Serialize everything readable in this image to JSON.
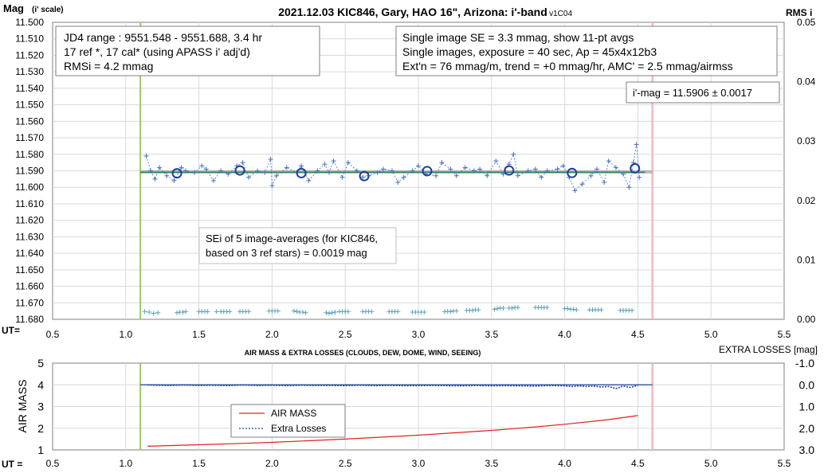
{
  "chart_data": [
    {
      "type": "scatter",
      "title": "2021.12.03 KIC846, Gary, HAO 16\", Arizona: i'-band",
      "version": "- v1C04",
      "ylabel_left_main": "Mag",
      "ylabel_left_sub": "(i' scale)",
      "ylabel_right": "RMS i",
      "xlabel": "UT=",
      "xlim": [
        0.5,
        5.5
      ],
      "ylim_left": [
        11.68,
        11.5
      ],
      "ylim_right": [
        0.0,
        0.05
      ],
      "x_ticks": [
        "0.5",
        "1.0",
        "1.5",
        "2.0",
        "2.5",
        "3.0",
        "3.5",
        "4.0",
        "4.5",
        "5.0",
        "5.5"
      ],
      "y_ticks_left": [
        "11.500",
        "11.510",
        "11.520",
        "11.530",
        "11.540",
        "11.550",
        "11.560",
        "11.570",
        "11.580",
        "11.590",
        "11.600",
        "11.610",
        "11.620",
        "11.630",
        "11.640",
        "11.650",
        "11.660",
        "11.670",
        "11.680"
      ],
      "y_ticks_right": [
        "0.05",
        "0.04",
        "0.03",
        "0.02",
        "0.01",
        "0.00"
      ],
      "grid": true,
      "start_line_ut": 1.1,
      "end_line_ut": 4.6,
      "mean_mag": 11.5906,
      "mean_line": {
        "x1": 1.1,
        "x2": 4.6,
        "y": 11.5906,
        "color": "#aaaaaa"
      },
      "fit_line": {
        "x1": 1.1,
        "x2": 4.55,
        "y": 11.5909,
        "color": "#2e8b57"
      },
      "info_box_left": [
        "JD4 range : 9551.548 - 9551.688, 3.4  hr",
        "17 ref *, 17 cal* (using APASS i' adj'd)",
        "RMSi = 4.2 mmag"
      ],
      "info_box_right": [
        "Single image SE = 3.3 mmag, show 11-pt avgs",
        "Single images, exposure = 40 sec, Ap = 45x4x12b3",
        "Ext'n = 76 mmag/m, trend = +0 mmag/hr, AMC' = 2.5 mmag/airmss"
      ],
      "result_label": "i'-mag = 11.5906 ± 0.0017",
      "sei_label": [
        "SEi of 5 image-averages (for KIC846,",
        "based on 3 ref stars) = 0.0019 mag"
      ],
      "series": [
        {
          "kind": "single_images",
          "color": "#4472c4",
          "x": [
            1.14,
            1.17,
            1.2,
            1.23,
            1.28,
            1.33,
            1.38,
            1.41,
            1.47,
            1.52,
            1.55,
            1.6,
            1.65,
            1.7,
            1.76,
            1.8,
            1.84,
            1.9,
            1.95,
            1.99,
            2.0,
            2.03,
            2.1,
            2.17,
            2.2,
            2.25,
            2.31,
            2.36,
            2.39,
            2.42,
            2.48,
            2.52,
            2.58,
            2.62,
            2.66,
            2.72,
            2.76,
            2.82,
            2.86,
            2.9,
            2.96,
            3.0,
            3.05,
            3.12,
            3.16,
            3.22,
            3.26,
            3.32,
            3.38,
            3.42,
            3.47,
            3.53,
            3.58,
            3.62,
            3.65,
            3.68,
            3.75,
            3.8,
            3.84,
            3.88,
            3.95,
            3.99,
            4.03,
            4.07,
            4.12,
            4.18,
            4.22,
            4.27,
            4.3,
            4.35,
            4.4,
            4.44,
            4.47,
            4.49,
            4.51
          ],
          "y": [
            11.581,
            11.59,
            11.595,
            11.588,
            11.593,
            11.596,
            11.588,
            11.59,
            11.591,
            11.587,
            11.589,
            11.596,
            11.59,
            11.592,
            11.587,
            11.585,
            11.594,
            11.59,
            11.591,
            11.583,
            11.599,
            11.593,
            11.588,
            11.591,
            11.587,
            11.596,
            11.59,
            11.586,
            11.591,
            11.584,
            11.594,
            11.585,
            11.59,
            11.594,
            11.593,
            11.591,
            11.589,
            11.59,
            11.597,
            11.594,
            11.59,
            11.587,
            11.592,
            11.593,
            11.585,
            11.589,
            11.593,
            11.588,
            11.59,
            11.589,
            11.593,
            11.584,
            11.592,
            11.586,
            11.58,
            11.593,
            11.59,
            11.589,
            11.594,
            11.59,
            11.589,
            11.587,
            11.594,
            11.602,
            11.598,
            11.593,
            11.589,
            11.597,
            11.584,
            11.588,
            11.592,
            11.6,
            11.585,
            11.574,
            11.594
          ]
        },
        {
          "kind": "11_pt_averages",
          "color": "#1f3fa0",
          "x": [
            1.35,
            1.78,
            2.2,
            2.63,
            3.06,
            3.62,
            4.05,
            4.48
          ],
          "y": [
            11.5915,
            11.5898,
            11.5914,
            11.5932,
            11.5902,
            11.5898,
            11.5913,
            11.5885
          ]
        },
        {
          "kind": "rms_per_image",
          "axis": "right",
          "color": "#5ba3b5",
          "x": [
            1.13,
            1.16,
            1.19,
            1.22,
            1.35,
            1.37,
            1.39,
            1.41,
            1.5,
            1.52,
            1.54,
            1.56,
            1.62,
            1.65,
            1.67,
            1.69,
            1.71,
            1.78,
            1.8,
            1.82,
            1.84,
            1.98,
            2.0,
            2.02,
            2.04,
            2.15,
            2.17,
            2.19,
            2.21,
            2.23,
            2.37,
            2.39,
            2.41,
            2.43,
            2.46,
            2.48,
            2.5,
            2.52,
            2.62,
            2.64,
            2.66,
            2.68,
            2.8,
            2.82,
            2.84,
            2.86,
            2.96,
            2.98,
            3.0,
            3.02,
            3.04,
            3.18,
            3.2,
            3.22,
            3.24,
            3.26,
            3.33,
            3.35,
            3.37,
            3.39,
            3.41,
            3.52,
            3.54,
            3.56,
            3.58,
            3.62,
            3.64,
            3.66,
            3.68,
            3.8,
            3.82,
            3.84,
            3.86,
            3.88,
            4.0,
            4.02,
            4.04,
            4.06,
            4.08,
            4.17,
            4.19,
            4.21,
            4.23,
            4.25,
            4.38,
            4.4,
            4.42,
            4.44,
            4.46
          ],
          "y": [
            0.0013,
            0.0012,
            0.001,
            0.0011,
            0.0011,
            0.0012,
            0.0012,
            0.0013,
            0.0013,
            0.0013,
            0.0013,
            0.0013,
            0.0013,
            0.0013,
            0.0013,
            0.0013,
            0.0013,
            0.0013,
            0.0013,
            0.0013,
            0.0013,
            0.0014,
            0.0014,
            0.0014,
            0.0014,
            0.0014,
            0.0013,
            0.0012,
            0.0012,
            0.0011,
            0.0011,
            0.001,
            0.0011,
            0.0012,
            0.0013,
            0.0013,
            0.0013,
            0.0013,
            0.0013,
            0.0013,
            0.0013,
            0.0013,
            0.0013,
            0.0013,
            0.0013,
            0.0013,
            0.0012,
            0.0012,
            0.0012,
            0.0012,
            0.0012,
            0.0013,
            0.0013,
            0.0013,
            0.0014,
            0.0014,
            0.0015,
            0.0015,
            0.0015,
            0.0016,
            0.0016,
            0.0017,
            0.0018,
            0.0019,
            0.0019,
            0.0019,
            0.0019,
            0.002,
            0.002,
            0.002,
            0.002,
            0.002,
            0.002,
            0.002,
            0.0018,
            0.0018,
            0.0017,
            0.0017,
            0.0016,
            0.0016,
            0.0016,
            0.0016,
            0.0016,
            0.0016,
            0.0015,
            0.0015,
            0.0015,
            0.0015,
            0.0015
          ]
        }
      ]
    },
    {
      "type": "line",
      "title": "AIR MASS & EXTRA LOSSES (CLOUDS, DEW, DOME, WIND, SEEING)",
      "ylabel_left": "AIR MASS",
      "ylabel_right": "EXTRA LOSSES [mag]",
      "xlabel": "UT =",
      "xlim": [
        0.5,
        5.5
      ],
      "ylim_left": [
        1,
        5
      ],
      "ylim_right": [
        3.0,
        -1.0
      ],
      "x_ticks": [
        "0.5",
        "1.0",
        "1.5",
        "2.0",
        "2.5",
        "3.0",
        "3.5",
        "4.0",
        "4.5",
        "5.0",
        "5.5"
      ],
      "y_ticks_left": [
        "5",
        "4",
        "3",
        "2",
        "1"
      ],
      "y_ticks_right": [
        "-1.0",
        "0.0",
        "1.0",
        "2.0",
        "3.0"
      ],
      "grid": true,
      "start_line_ut": 1.1,
      "end_line_ut": 4.6,
      "zero_line": {
        "x1": 1.1,
        "x2": 4.6,
        "y": 0.0
      },
      "legend": {
        "position": "center-left",
        "entries": [
          "AIR MASS",
          "Extra Losses"
        ]
      },
      "series": [
        {
          "name": "AIR MASS",
          "axis": "left",
          "color": "#e02020",
          "x": [
            1.15,
            1.5,
            1.8,
            2.0,
            2.5,
            3.0,
            3.5,
            3.8,
            4.0,
            4.2,
            4.3,
            4.5
          ],
          "y": [
            1.17,
            1.24,
            1.3,
            1.35,
            1.5,
            1.68,
            1.9,
            2.06,
            2.18,
            2.32,
            2.4,
            2.58
          ]
        },
        {
          "name": "Extra Losses",
          "axis": "right",
          "color": "#1f3fa0",
          "x": [
            1.15,
            1.2,
            1.3,
            1.4,
            1.5,
            1.6,
            1.7,
            1.8,
            1.9,
            2.0,
            2.1,
            2.2,
            2.3,
            2.4,
            2.5,
            2.6,
            2.7,
            2.8,
            2.9,
            3.0,
            3.1,
            3.2,
            3.3,
            3.4,
            3.5,
            3.6,
            3.7,
            3.8,
            3.9,
            4.0,
            4.05,
            4.1,
            4.15,
            4.2,
            4.25,
            4.3,
            4.35,
            4.4,
            4.45,
            4.5
          ],
          "y": [
            0.0,
            0.02,
            0.03,
            0.01,
            0.03,
            0.02,
            0.04,
            0.01,
            0.03,
            0.02,
            0.04,
            0.02,
            0.03,
            0.03,
            0.04,
            0.02,
            0.04,
            0.03,
            0.04,
            0.04,
            0.03,
            0.04,
            0.05,
            0.03,
            0.05,
            0.04,
            0.05,
            0.06,
            0.03,
            0.05,
            0.08,
            0.05,
            0.08,
            0.06,
            0.1,
            0.08,
            0.17,
            0.06,
            0.12,
            0.03
          ]
        }
      ]
    }
  ]
}
